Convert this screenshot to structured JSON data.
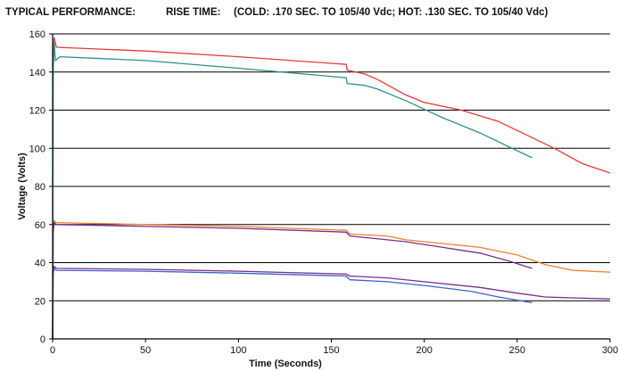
{
  "header": {
    "left": "TYPICAL PERFORMANCE:",
    "middle": "RISE TIME:",
    "right": "(COLD: .170 SEC. TO 105/40 Vdc; HOT: .130 SEC. TO 105/40 Vdc)"
  },
  "chart_data": {
    "type": "line",
    "title": "",
    "xlabel": "Time (Seconds)",
    "ylabel": "Voltage (Volts)",
    "xlim": [
      0,
      300
    ],
    "ylim": [
      0,
      160
    ],
    "xticks": [
      "0",
      "50",
      "100",
      "150",
      "200",
      "250",
      "300"
    ],
    "yticks": [
      "0",
      "20",
      "40",
      "60",
      "80",
      "100",
      "120",
      "140",
      "160"
    ],
    "grid": "horizontal",
    "legend": "none",
    "series": [
      {
        "color": "#e8383a",
        "points": [
          [
            0,
            0
          ],
          [
            0.3,
            150
          ],
          [
            0.8,
            158
          ],
          [
            2,
            153
          ],
          [
            50,
            151
          ],
          [
            100,
            148
          ],
          [
            158,
            144
          ],
          [
            158.5,
            141
          ],
          [
            163,
            140
          ],
          [
            168,
            139
          ],
          [
            175,
            136
          ],
          [
            190,
            128
          ],
          [
            200,
            124
          ],
          [
            220,
            120
          ],
          [
            240,
            114
          ],
          [
            255,
            107
          ],
          [
            270,
            100
          ],
          [
            285,
            92
          ],
          [
            300,
            87
          ]
        ]
      },
      {
        "color": "#2f8f8c",
        "points": [
          [
            0,
            0
          ],
          [
            0.3,
            140
          ],
          [
            0.8,
            156
          ],
          [
            1.5,
            146
          ],
          [
            4,
            148
          ],
          [
            50,
            146
          ],
          [
            100,
            142
          ],
          [
            158,
            137
          ],
          [
            158.5,
            134
          ],
          [
            168,
            133
          ],
          [
            175,
            131
          ],
          [
            190,
            125
          ],
          [
            210,
            116
          ],
          [
            230,
            108
          ],
          [
            245,
            101
          ],
          [
            258,
            95
          ]
        ]
      },
      {
        "color": "#f08030",
        "points": [
          [
            0,
            0
          ],
          [
            0.3,
            57
          ],
          [
            0.8,
            62
          ],
          [
            2,
            61
          ],
          [
            50,
            60
          ],
          [
            100,
            59
          ],
          [
            158,
            57
          ],
          [
            160,
            55
          ],
          [
            180,
            54
          ],
          [
            190,
            52
          ],
          [
            210,
            50
          ],
          [
            230,
            48
          ],
          [
            250,
            44
          ],
          [
            265,
            39
          ],
          [
            280,
            36
          ],
          [
            300,
            35
          ]
        ]
      },
      {
        "color": "#7a2e8e",
        "points": [
          [
            0,
            0
          ],
          [
            0.3,
            56
          ],
          [
            0.8,
            61
          ],
          [
            2,
            60
          ],
          [
            50,
            59
          ],
          [
            100,
            58
          ],
          [
            158,
            56
          ],
          [
            160,
            54
          ],
          [
            180,
            52
          ],
          [
            190,
            51
          ],
          [
            210,
            48
          ],
          [
            230,
            45
          ],
          [
            245,
            41
          ],
          [
            258,
            37
          ]
        ]
      },
      {
        "color": "#7a2e8e",
        "points": [
          [
            0,
            0
          ],
          [
            0.3,
            35
          ],
          [
            0.8,
            38
          ],
          [
            2,
            37
          ],
          [
            50,
            36.5
          ],
          [
            100,
            35.5
          ],
          [
            158,
            34
          ],
          [
            160,
            33
          ],
          [
            180,
            32
          ],
          [
            200,
            30
          ],
          [
            230,
            27
          ],
          [
            250,
            24
          ],
          [
            265,
            22
          ],
          [
            280,
            21.5
          ],
          [
            300,
            21
          ]
        ]
      },
      {
        "color": "#4060c8",
        "points": [
          [
            0,
            0
          ],
          [
            0.3,
            34
          ],
          [
            0.8,
            37
          ],
          [
            2,
            36
          ],
          [
            50,
            35.5
          ],
          [
            100,
            34.5
          ],
          [
            158,
            33
          ],
          [
            160,
            31
          ],
          [
            180,
            30
          ],
          [
            200,
            28
          ],
          [
            225,
            25
          ],
          [
            240,
            22
          ],
          [
            258,
            19
          ]
        ]
      }
    ]
  }
}
